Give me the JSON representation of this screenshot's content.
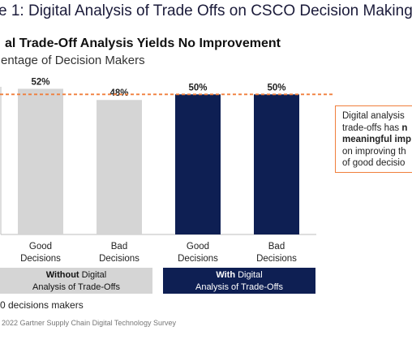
{
  "figure_title": "e 1: Digital Analysis of Trade Offs on CSCO Decision Making",
  "chart_title": "al Trade-Off Analysis Yields No Improvement",
  "chart_subtitle": "entage of Decision Makers",
  "colors": {
    "without_bar": "#d5d5d5",
    "with_bar": "#0e1f53",
    "reference_line": "#f07f3c"
  },
  "chart_data": {
    "type": "bar",
    "categories": [
      "Good Decisions",
      "Bad Decisions",
      "Good Decisions",
      "Bad Decisions"
    ],
    "values": [
      52,
      48,
      50,
      50
    ],
    "value_labels": [
      "52%",
      "48%",
      "50%",
      "50%"
    ],
    "category_lines": [
      [
        "Good",
        "Decisions"
      ],
      [
        "Bad",
        "Decisions"
      ],
      [
        "Good",
        "Decisions"
      ],
      [
        "Bad",
        "Decisions"
      ]
    ],
    "bar_colors": [
      "#d5d5d5",
      "#d5d5d5",
      "#0e1f53",
      "#0e1f53"
    ],
    "groups": [
      {
        "bold": "Without",
        "rest": " Digital",
        "line2": "Analysis of Trade-Offs",
        "categories": [
          0,
          1
        ]
      },
      {
        "bold": "With",
        "rest": " Digital",
        "line2": "Analysis of Trade-Offs",
        "categories": [
          2,
          3
        ]
      }
    ],
    "reference_line": 50,
    "ylim": [
      0,
      75
    ],
    "xlabel": "",
    "ylabel": "",
    "grid": false
  },
  "callout": {
    "line1": "Digital analysis",
    "line2_normal": "trade-offs has ",
    "line2_bold": "n",
    "line3_bold": "meaningful imp",
    "line4": "on improving th",
    "line5": "of good decisio"
  },
  "sample_note": "0 decisions makers",
  "source": "2022 Gartner Supply Chain Digital Technology Survey"
}
